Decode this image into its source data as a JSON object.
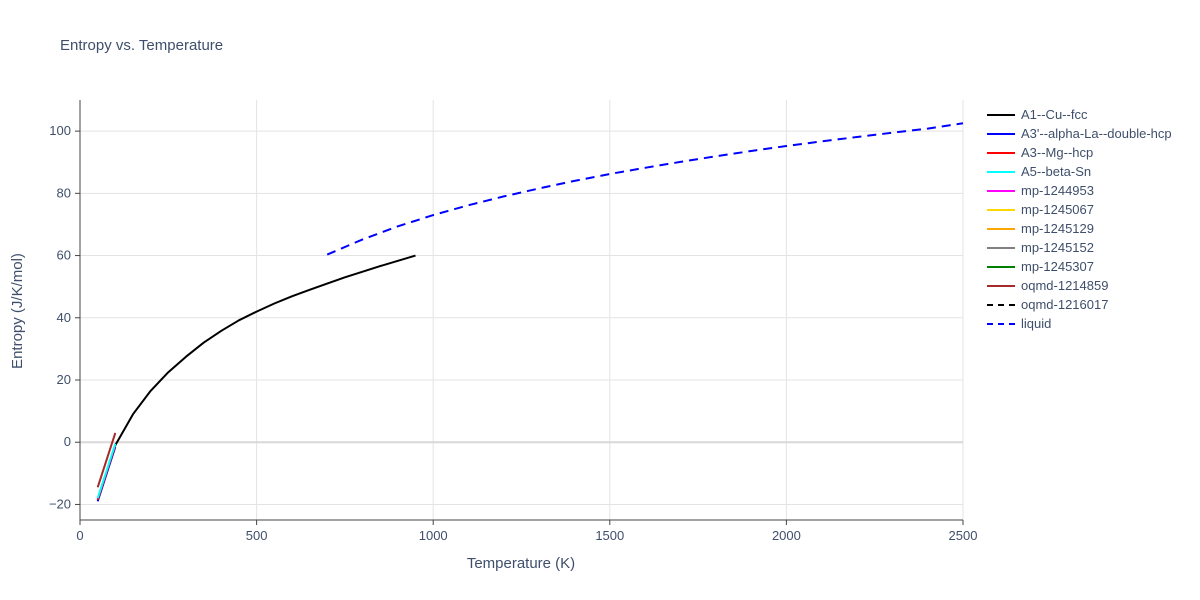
{
  "chart_data": {
    "type": "line",
    "title": "Entropy vs. Temperature",
    "xlabel": "Temperature (K)",
    "ylabel": "Entropy (J/K/mol)",
    "xlim": [
      0,
      2500
    ],
    "ylim": [
      -25,
      110
    ],
    "xticks": [
      0,
      500,
      1000,
      1500,
      2000,
      2500
    ],
    "yticks": [
      -20,
      0,
      20,
      40,
      60,
      80,
      100
    ],
    "grid": true,
    "legend_position": "right",
    "series": [
      {
        "name": "A1--Cu--fcc",
        "color": "#000000",
        "dash": "solid",
        "x": [
          100,
          150,
          200,
          250,
          300,
          350,
          400,
          450,
          500,
          550,
          600,
          650,
          700,
          750,
          800,
          850,
          900,
          950
        ],
        "y": [
          -1,
          9,
          16.5,
          22.5,
          27.5,
          32,
          35.8,
          39.2,
          42,
          44.6,
          46.9,
          49,
          51,
          53,
          54.8,
          56.6,
          58.3,
          60
        ]
      },
      {
        "name": "A3'--alpha-La--double-hcp",
        "color": "#0000ff",
        "dash": "solid",
        "x": [
          50,
          100
        ],
        "y": [
          -19,
          -1.5
        ]
      },
      {
        "name": "A3--Mg--hcp",
        "color": "#ff0000",
        "dash": "solid",
        "x": [
          50,
          100
        ],
        "y": [
          -18.5,
          -1
        ]
      },
      {
        "name": "A5--beta-Sn",
        "color": "#00ffff",
        "dash": "solid",
        "x": [
          50,
          100
        ],
        "y": [
          -18,
          -0.5
        ]
      },
      {
        "name": "mp-1244953",
        "color": "#ff00ff",
        "dash": "solid",
        "x": [],
        "y": []
      },
      {
        "name": "mp-1245067",
        "color": "#ffd700",
        "dash": "solid",
        "x": [],
        "y": []
      },
      {
        "name": "mp-1245129",
        "color": "#ffa500",
        "dash": "solid",
        "x": [],
        "y": []
      },
      {
        "name": "mp-1245152",
        "color": "#808080",
        "dash": "solid",
        "x": [],
        "y": []
      },
      {
        "name": "mp-1245307",
        "color": "#008000",
        "dash": "solid",
        "x": [],
        "y": []
      },
      {
        "name": "oqmd-1214859",
        "color": "#a52a2a",
        "dash": "solid",
        "x": [
          50,
          100
        ],
        "y": [
          -14.5,
          3
        ]
      },
      {
        "name": "oqmd-1216017",
        "color": "#000000",
        "dash": "dash",
        "x": [],
        "y": []
      },
      {
        "name": "liquid",
        "color": "#0000ff",
        "dash": "dash",
        "x": [
          700,
          800,
          900,
          1000,
          1100,
          1200,
          1300,
          1400,
          1500,
          1600,
          1700,
          1800,
          1900,
          2000,
          2100,
          2200,
          2300,
          2400,
          2500
        ],
        "y": [
          60.3,
          65.2,
          69.4,
          73,
          76.2,
          79,
          81.6,
          84,
          86.2,
          88.2,
          90.1,
          91.9,
          93.6,
          95.2,
          96.7,
          98.1,
          99.5,
          100.8,
          102.5
        ]
      }
    ]
  }
}
